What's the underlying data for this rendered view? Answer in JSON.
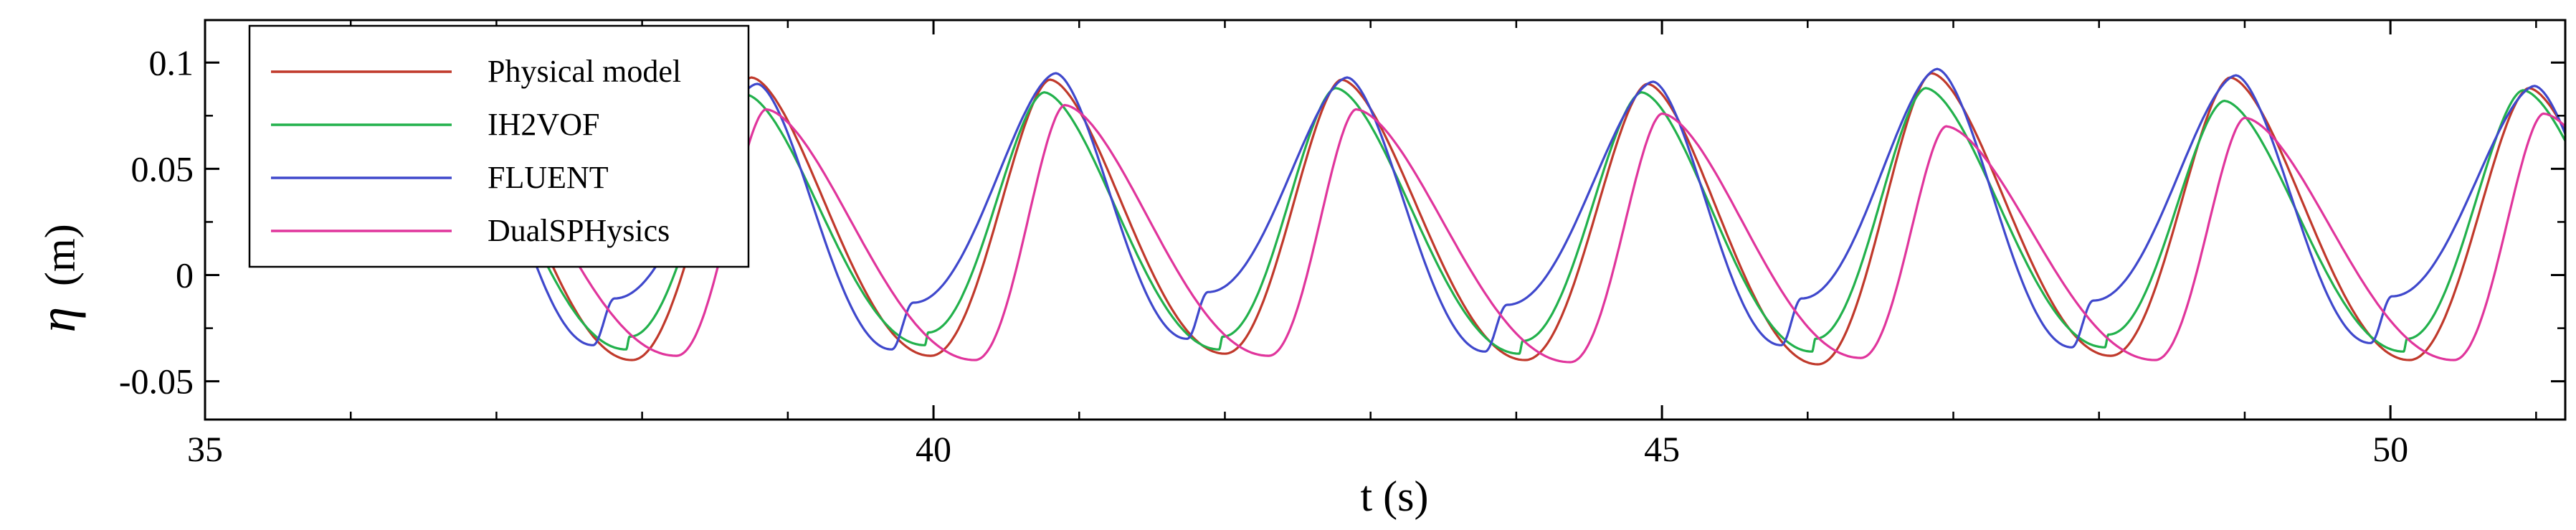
{
  "chart_data": {
    "type": "line",
    "title": "",
    "xlabel": "t (s)",
    "ylabel_symbol": "η",
    "ylabel_unit": "(m)",
    "xlim": [
      35,
      51.2
    ],
    "ylim": [
      -0.068,
      0.12
    ],
    "x_ticks": [
      35,
      40,
      45,
      50
    ],
    "y_ticks": [
      {
        "value": 0.1,
        "label": "0.1"
      },
      {
        "value": 0.05,
        "label": "0.05"
      },
      {
        "value": 0,
        "label": "0"
      },
      {
        "value": -0.05,
        "label": "-0.05"
      }
    ],
    "grid": false,
    "legend_position": "top-left",
    "series": [
      {
        "name": "Physical model",
        "color": "#c0392b",
        "crest_times": [
          38.75,
          40.8,
          42.8,
          44.9,
          46.85,
          48.9,
          50.95
        ],
        "crest_values": [
          0.093,
          0.092,
          0.092,
          0.09,
          0.095,
          0.093,
          0.088
        ],
        "trough_values": [
          -0.04,
          -0.038,
          -0.037,
          -0.04,
          -0.042,
          -0.038,
          -0.04,
          -0.042
        ],
        "trough_shift": 0.6,
        "shoulder": {
          "depth": 0,
          "pos": 0.5
        },
        "phase": 0
      },
      {
        "name": "IH2VOF",
        "color": "#22b14c",
        "crest_times": [
          38.75,
          40.8,
          42.8,
          44.9,
          46.85,
          48.9,
          50.95
        ],
        "crest_values": [
          0.085,
          0.086,
          0.088,
          0.086,
          0.088,
          0.082,
          0.087
        ],
        "trough_values": [
          -0.035,
          -0.033,
          -0.035,
          -0.037,
          -0.036,
          -0.034,
          -0.036,
          -0.034
        ],
        "trough_shift": 0.6,
        "shoulder": {
          "depth": 0.006,
          "pos": 0.55
        },
        "phase": -0.04
      },
      {
        "name": "FLUENT",
        "color": "#3f48cc",
        "crest_times": [
          38.75,
          40.8,
          42.8,
          44.9,
          46.85,
          48.9,
          50.95
        ],
        "crest_values": [
          0.09,
          0.095,
          0.093,
          0.091,
          0.097,
          0.094,
          0.089
        ],
        "trough_values": [
          -0.033,
          -0.035,
          -0.03,
          -0.036,
          -0.033,
          -0.034,
          -0.032,
          -0.032
        ],
        "trough_shift": 0.45,
        "shoulder": {
          "depth": 0.022,
          "pos": 0.72
        },
        "phase": 0.04
      },
      {
        "name": "DualSPHysics",
        "color": "#e0359c",
        "crest_times": [
          38.75,
          40.8,
          42.8,
          44.9,
          46.85,
          48.9,
          50.95
        ],
        "crest_values": [
          0.078,
          0.08,
          0.078,
          0.076,
          0.07,
          0.074,
          0.076
        ],
        "trough_values": [
          -0.038,
          -0.04,
          -0.038,
          -0.041,
          -0.039,
          -0.04,
          -0.04,
          -0.04
        ],
        "trough_shift": 0.7,
        "shoulder": {
          "depth": 0,
          "pos": 0.5
        },
        "phase": 0.1
      }
    ]
  }
}
